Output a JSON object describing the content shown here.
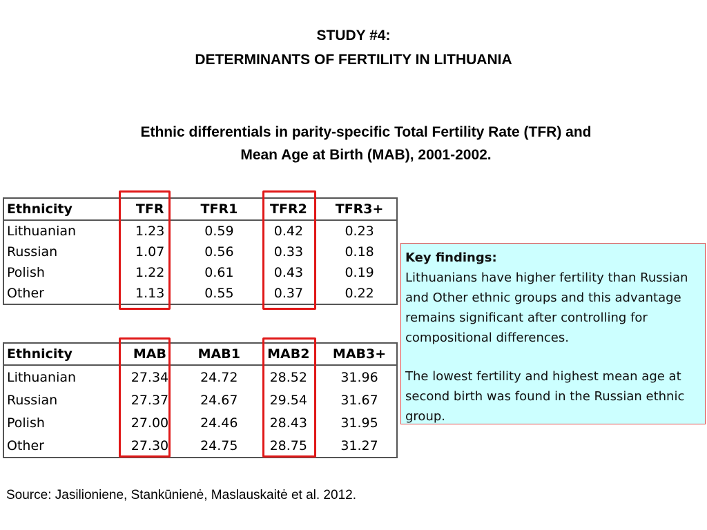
{
  "title": {
    "line1": "STUDY #4:",
    "line2": "DETERMINANTS OF FERTILITY IN LITHUANIA"
  },
  "subtitle": {
    "line1": "Ethnic differentials in parity-specific Total Fertility Rate (TFR) and",
    "line2": "Mean Age at Birth (MAB), 2001-2002."
  },
  "tfr_table": {
    "headers": [
      "Ethnicity",
      "TFR",
      "TFR1",
      "TFR2",
      "TFR3+"
    ],
    "rows": [
      [
        "Lithuanian",
        "1.23",
        "0.59",
        "0.42",
        "0.23"
      ],
      [
        "Russian",
        "1.07",
        "0.56",
        "0.33",
        "0.18"
      ],
      [
        "Polish",
        "1.22",
        "0.61",
        "0.43",
        "0.19"
      ],
      [
        "Other",
        "1.13",
        "0.55",
        "0.37",
        "0.22"
      ]
    ]
  },
  "mab_table": {
    "headers": [
      "Ethnicity",
      "MAB",
      "MAB1",
      "MAB2",
      "MAB3+"
    ],
    "rows": [
      [
        "Lithuanian",
        "27.34",
        "24.72",
        "28.52",
        "31.96"
      ],
      [
        "Russian",
        "27.37",
        "24.67",
        "29.54",
        "31.67"
      ],
      [
        "Polish",
        "27.00",
        "24.46",
        "28.43",
        "31.95"
      ],
      [
        "Other",
        "27.30",
        "24.75",
        "28.75",
        "31.27"
      ]
    ]
  },
  "key_findings": {
    "title": "Key findings:",
    "paragraph1": "Lithuanians have higher fertility than Russian and Other ethnic groups and this advantage remains significant after controlling for compositional differences.",
    "paragraph2": "The lowest fertility and highest mean age at second birth was found in the Russian ethnic group."
  },
  "source": "Source: Jasilioniene, Stankūnienė, Maslauskaitė  et al. 2012.",
  "colors": {
    "highlight": "#e01818",
    "key_box_background": "#ccffff",
    "key_box_border": "#e05050"
  }
}
